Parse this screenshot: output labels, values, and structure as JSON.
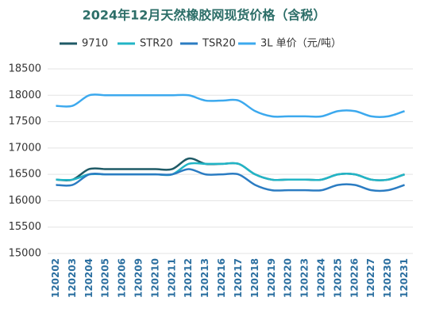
{
  "chart_data": {
    "type": "line",
    "title": "2024年12月天然橡胶网现货价格（含税）",
    "categories": [
      "120202",
      "120203",
      "120204",
      "120205",
      "120206",
      "120209",
      "120210",
      "120211",
      "120212",
      "120213",
      "120216",
      "120217",
      "120218",
      "120219",
      "120220",
      "120223",
      "120224",
      "120225",
      "120226",
      "120227",
      "120230",
      "120231"
    ],
    "series": [
      {
        "name": "9710",
        "color": "#1f5a66",
        "values": [
          16400,
          16400,
          16600,
          16600,
          16600,
          16600,
          16600,
          16600,
          16800,
          16700,
          16700,
          16700,
          16500,
          16400,
          16400,
          16400,
          16400,
          16500,
          16500,
          16400,
          16400,
          16500
        ]
      },
      {
        "name": "STR20",
        "color": "#22b5c6",
        "values": [
          16400,
          16400,
          16500,
          16500,
          16500,
          16500,
          16500,
          16500,
          16700,
          16700,
          16700,
          16700,
          16500,
          16400,
          16400,
          16400,
          16400,
          16500,
          16500,
          16400,
          16400,
          16500
        ]
      },
      {
        "name": "TSR20",
        "color": "#2b7cc2",
        "values": [
          16300,
          16300,
          16500,
          16500,
          16500,
          16500,
          16500,
          16500,
          16600,
          16500,
          16500,
          16500,
          16300,
          16200,
          16200,
          16200,
          16200,
          16300,
          16300,
          16200,
          16200,
          16300
        ]
      },
      {
        "name": "3L 单价（元/吨）",
        "color": "#3ca9ee",
        "values": [
          17800,
          17800,
          18000,
          18000,
          18000,
          18000,
          18000,
          18000,
          18000,
          17900,
          17900,
          17900,
          17700,
          17600,
          17600,
          17600,
          17600,
          17700,
          17700,
          17600,
          17600,
          17700
        ]
      }
    ],
    "ylim": [
      15000,
      18500
    ],
    "yticks": [
      15000,
      15500,
      16000,
      16500,
      17000,
      17500,
      18000,
      18500
    ],
    "grid": true
  }
}
